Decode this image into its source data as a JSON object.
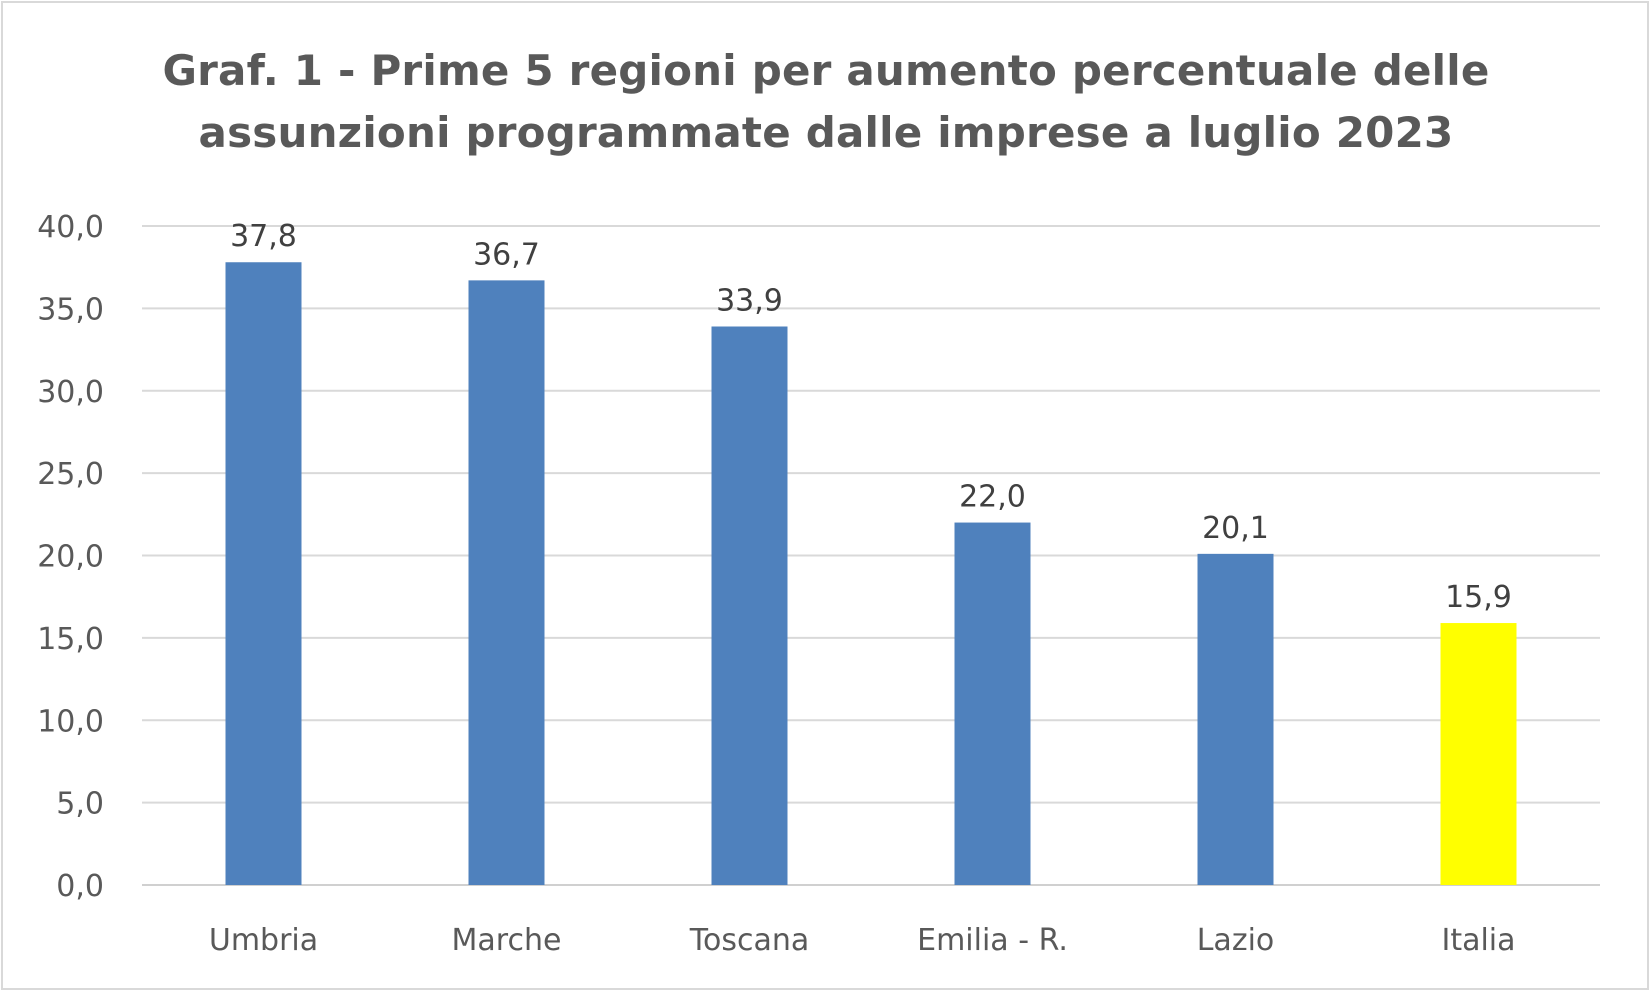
{
  "chart_data": {
    "type": "bar",
    "title_lines": [
      "Graf. 1 - Prime 5 regioni per aumento percentuale delle",
      "assunzioni programmate dalle imprese a luglio 2023"
    ],
    "categories": [
      "Umbria",
      "Marche",
      "Toscana",
      "Emilia - R.",
      "Lazio",
      "Italia"
    ],
    "values": [
      37.8,
      36.7,
      33.9,
      22.0,
      20.1,
      15.9
    ],
    "data_labels": [
      "37,8",
      "36,7",
      "33,9",
      "22,0",
      "20,1",
      "15,9"
    ],
    "ylim": [
      0,
      40
    ],
    "yticks": [
      "0,0",
      "5,0",
      "10,0",
      "15,0",
      "20,0",
      "25,0",
      "30,0",
      "35,0",
      "40,0"
    ],
    "ytick_values": [
      0,
      5,
      10,
      15,
      20,
      25,
      30,
      35,
      40
    ],
    "colors": [
      "#4f81bd",
      "#4f81bd",
      "#4f81bd",
      "#4f81bd",
      "#4f81bd",
      "#ffff00"
    ],
    "grid": true,
    "legend": "none",
    "xlabel": "",
    "ylabel": ""
  }
}
